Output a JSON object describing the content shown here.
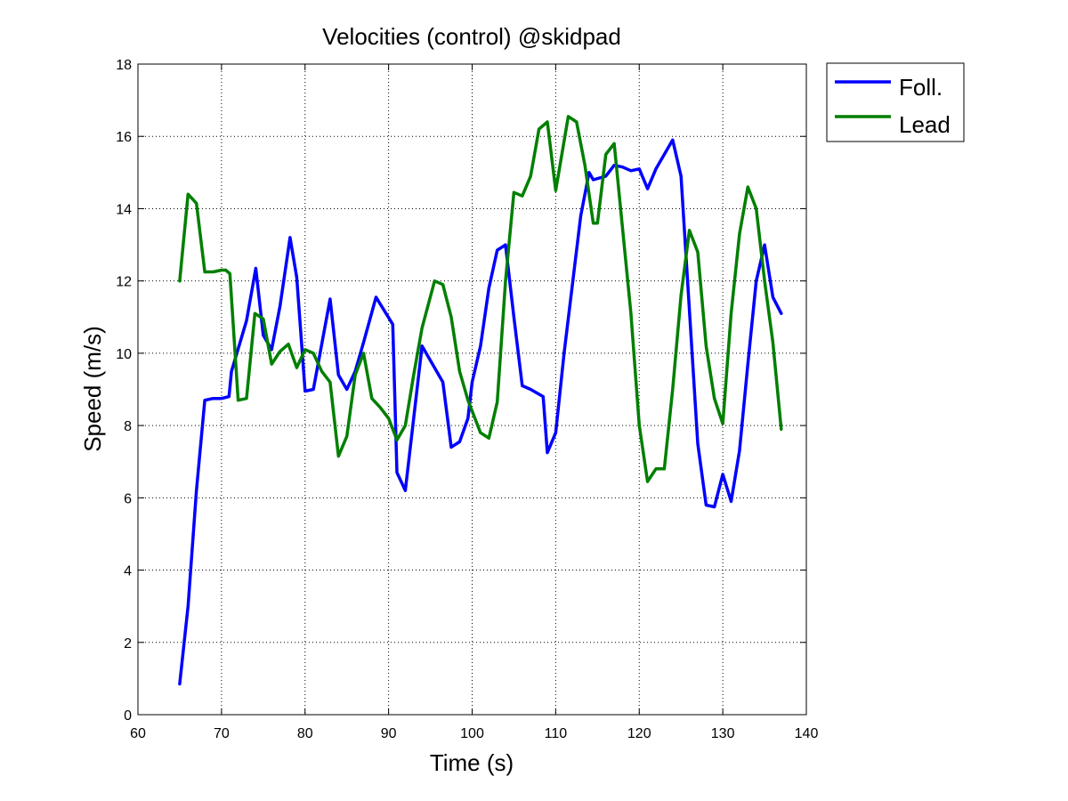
{
  "chart_data": {
    "type": "line",
    "title": "Velocities (control) @skidpad",
    "xlabel": "Time (s)",
    "ylabel": "Speed (m/s)",
    "xlim": [
      60,
      140
    ],
    "ylim": [
      0,
      18
    ],
    "xticks": [
      60,
      70,
      80,
      90,
      100,
      110,
      120,
      130,
      140
    ],
    "yticks": [
      0,
      2,
      4,
      6,
      8,
      10,
      12,
      14,
      16,
      18
    ],
    "grid": true,
    "legend_position": "outside-top-right",
    "series": [
      {
        "name": "Foll.",
        "color": "#0000ff",
        "x": [
          65,
          66,
          67,
          68,
          69,
          70,
          70.9,
          71.2,
          73,
          74.1,
          75,
          76,
          77,
          78.2,
          79,
          80,
          81,
          83,
          84,
          85,
          86,
          87,
          88.5,
          90.5,
          91,
          92,
          94,
          96.5,
          97.5,
          98.5,
          99.5,
          100,
          101,
          102,
          103,
          104,
          105,
          106,
          107,
          108.5,
          109,
          110,
          111,
          113,
          114,
          114.5,
          116,
          117,
          118,
          119,
          120,
          121,
          122,
          123,
          124,
          125,
          126,
          127,
          128,
          129,
          130,
          131,
          132,
          133,
          134,
          135,
          136,
          137
        ],
        "y": [
          0.85,
          3.0,
          6.2,
          8.7,
          8.75,
          8.75,
          8.8,
          9.5,
          10.9,
          12.35,
          10.5,
          10.1,
          11.3,
          13.2,
          12.1,
          8.95,
          9.0,
          11.5,
          9.4,
          9.0,
          9.5,
          10.3,
          11.55,
          10.8,
          6.7,
          6.2,
          10.2,
          9.2,
          7.4,
          7.55,
          8.2,
          9.2,
          10.2,
          11.8,
          12.85,
          13.0,
          11.0,
          9.1,
          9.0,
          8.8,
          7.25,
          7.8,
          10.0,
          13.8,
          15.0,
          14.8,
          14.9,
          15.2,
          15.15,
          15.05,
          15.1,
          14.55,
          15.1,
          15.5,
          15.9,
          14.9,
          11.2,
          7.5,
          5.8,
          5.75,
          6.65,
          5.9,
          7.3,
          9.7,
          12.0,
          13.0,
          11.55,
          11.1
        ]
      },
      {
        "name": "Lead",
        "color": "#007f00",
        "x": [
          65,
          66,
          67,
          68,
          69,
          70,
          70.5,
          71,
          72,
          73,
          74,
          75,
          76,
          77,
          78,
          79,
          80,
          81,
          82,
          83,
          84,
          85,
          86,
          87,
          88,
          89,
          90,
          91,
          92,
          93,
          94,
          95.5,
          96.5,
          97.5,
          98.5,
          99.5,
          101,
          102,
          103,
          104,
          105,
          106,
          107,
          108,
          109,
          110,
          111.5,
          112.5,
          113.5,
          114.5,
          115,
          116,
          117,
          119,
          120,
          121,
          122,
          123,
          124,
          125,
          126,
          127,
          128,
          129,
          130,
          131,
          132,
          133,
          134,
          135,
          136,
          137
        ],
        "y": [
          12.0,
          14.4,
          14.15,
          12.25,
          12.25,
          12.3,
          12.3,
          12.2,
          8.7,
          8.75,
          11.1,
          10.95,
          9.7,
          10.05,
          10.25,
          9.6,
          10.1,
          10.0,
          9.5,
          9.2,
          7.15,
          7.7,
          9.4,
          10.0,
          8.75,
          8.5,
          8.2,
          7.6,
          8.0,
          9.4,
          10.7,
          12.0,
          11.9,
          11.0,
          9.5,
          8.7,
          7.8,
          7.65,
          8.65,
          12.0,
          14.45,
          14.35,
          14.9,
          16.2,
          16.4,
          14.5,
          16.55,
          16.4,
          15.2,
          13.6,
          13.6,
          15.5,
          15.8,
          11.1,
          8.0,
          6.45,
          6.8,
          6.8,
          9.0,
          11.6,
          13.4,
          12.8,
          10.2,
          8.75,
          8.05,
          11.1,
          13.3,
          14.6,
          14.0,
          12.0,
          10.3,
          7.9
        ]
      }
    ]
  }
}
